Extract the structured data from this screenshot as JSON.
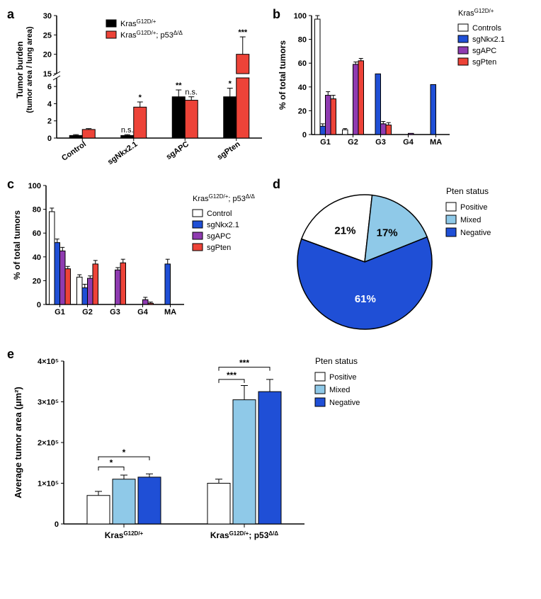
{
  "panel_a": {
    "label": "a",
    "ylabel_line1": "Tumor burden",
    "ylabel_line2": "(tumor area / lung area)",
    "categories": [
      "Control",
      "sgNkx2.1",
      "sgAPC",
      "sgPten"
    ],
    "series": [
      {
        "name": "Kras^G12D/+",
        "color": "#000000",
        "values": [
          0.3,
          0.3,
          4.8,
          4.8
        ],
        "errors": [
          0.1,
          0.1,
          0.8,
          1.0
        ],
        "sig": [
          "",
          "n.s.",
          "**",
          "*"
        ]
      },
      {
        "name": "Kras^G12D/+; p53^Δ/Δ",
        "color": "#ed4338",
        "values": [
          1.0,
          3.6,
          4.4,
          20
        ],
        "errors": [
          0.1,
          0.6,
          0.4,
          4.5
        ],
        "sig": [
          "",
          "*",
          "n.s.",
          "***"
        ]
      }
    ],
    "break_low": 7,
    "break_high": 15,
    "ymax": 30,
    "ticks_low": [
      0,
      2,
      4,
      6
    ],
    "ticks_high": [
      15,
      20,
      25,
      30
    ]
  },
  "panel_b": {
    "label": "b",
    "ylabel": "% of total tumors",
    "genotype": "Kras^G12D/+",
    "categories": [
      "G1",
      "G2",
      "G3",
      "G4",
      "MA"
    ],
    "series": [
      {
        "name": "Controls",
        "color": "#ffffff",
        "outline": "#000000",
        "values": [
          97,
          4,
          0,
          0,
          0
        ],
        "errors": [
          3,
          1,
          0,
          0,
          0
        ]
      },
      {
        "name": "sgNkx2.1",
        "color": "#1f4fd6",
        "outline": "#000000",
        "values": [
          7,
          0,
          51,
          0,
          42
        ],
        "errors": [
          2,
          0,
          0,
          0,
          0
        ]
      },
      {
        "name": "sgAPC",
        "color": "#8f3bb0",
        "outline": "#000000",
        "values": [
          33,
          59,
          9,
          1,
          0
        ],
        "errors": [
          3,
          2,
          2,
          0,
          0
        ]
      },
      {
        "name": "sgPten",
        "color": "#ed4338",
        "outline": "#000000",
        "values": [
          30,
          62,
          8,
          0,
          0
        ],
        "errors": [
          3,
          2,
          2,
          0,
          0
        ]
      }
    ],
    "ymax": 100,
    "yticks": [
      0,
      20,
      40,
      60,
      80,
      100
    ]
  },
  "panel_c": {
    "label": "c",
    "ylabel": "% of total tumors",
    "genotype": "Kras^G12D/+; p53^Δ/Δ",
    "categories": [
      "G1",
      "G2",
      "G3",
      "G4",
      "MA"
    ],
    "series": [
      {
        "name": "Control",
        "color": "#ffffff",
        "outline": "#000000",
        "values": [
          78,
          23,
          0,
          0,
          0
        ],
        "errors": [
          3,
          2,
          0,
          0,
          0
        ]
      },
      {
        "name": "sgNkx2.1",
        "color": "#1f4fd6",
        "outline": "#000000",
        "values": [
          52,
          14,
          0,
          0,
          34
        ],
        "errors": [
          3,
          3,
          0,
          0,
          4
        ]
      },
      {
        "name": "sgAPC",
        "color": "#8f3bb0",
        "outline": "#000000",
        "values": [
          45,
          22,
          29,
          4,
          0
        ],
        "errors": [
          3,
          2,
          2,
          2,
          0
        ]
      },
      {
        "name": "sgPten",
        "color": "#ed4338",
        "outline": "#000000",
        "values": [
          30,
          34,
          35,
          1,
          0
        ],
        "errors": [
          2,
          3,
          3,
          1,
          0
        ]
      }
    ],
    "ymax": 100,
    "yticks": [
      0,
      20,
      40,
      60,
      80,
      100
    ]
  },
  "panel_d": {
    "label": "d",
    "legend_title": "Pten status",
    "slices": [
      {
        "name": "Positive",
        "value": 21,
        "label": "21%",
        "color": "#ffffff",
        "outline": "#000000"
      },
      {
        "name": "Mixed",
        "value": 17,
        "label": "17%",
        "color": "#8fc9e8",
        "outline": "#000000"
      },
      {
        "name": "Negative",
        "value": 61,
        "label": "61%",
        "color": "#1f4fd6",
        "outline": "#000000"
      }
    ]
  },
  "panel_e": {
    "label": "e",
    "ylabel": "Average tumor area (μm²)",
    "categories": [
      "Kras^G12D/+",
      "Kras^G12D/+; p53^Δ/Δ"
    ],
    "legend_title": "Pten status",
    "series": [
      {
        "name": "Positive",
        "color": "#ffffff",
        "outline": "#000000",
        "values": [
          0.7,
          1.0
        ],
        "errors": [
          0.1,
          0.1
        ]
      },
      {
        "name": "Mixed",
        "color": "#8fc9e8",
        "outline": "#000000",
        "values": [
          1.1,
          3.05
        ],
        "errors": [
          0.1,
          0.35
        ]
      },
      {
        "name": "Negative",
        "color": "#1f4fd6",
        "outline": "#000000",
        "values": [
          1.15,
          3.25
        ],
        "errors": [
          0.08,
          0.3
        ]
      }
    ],
    "ymax": 4,
    "yticks": [
      0,
      1,
      2,
      3,
      4
    ],
    "ytick_labels": [
      "0",
      "1×10⁵",
      "2×10⁵",
      "3×10⁵",
      "4×10⁵"
    ],
    "sig_brackets": [
      {
        "group": 0,
        "i": 0,
        "j": 1,
        "label": "*",
        "y": 1.4
      },
      {
        "group": 0,
        "i": 0,
        "j": 2,
        "label": "*",
        "y": 1.65
      },
      {
        "group": 1,
        "i": 0,
        "j": 1,
        "label": "***",
        "y": 3.55
      },
      {
        "group": 1,
        "i": 0,
        "j": 2,
        "label": "***",
        "y": 3.85
      }
    ]
  }
}
